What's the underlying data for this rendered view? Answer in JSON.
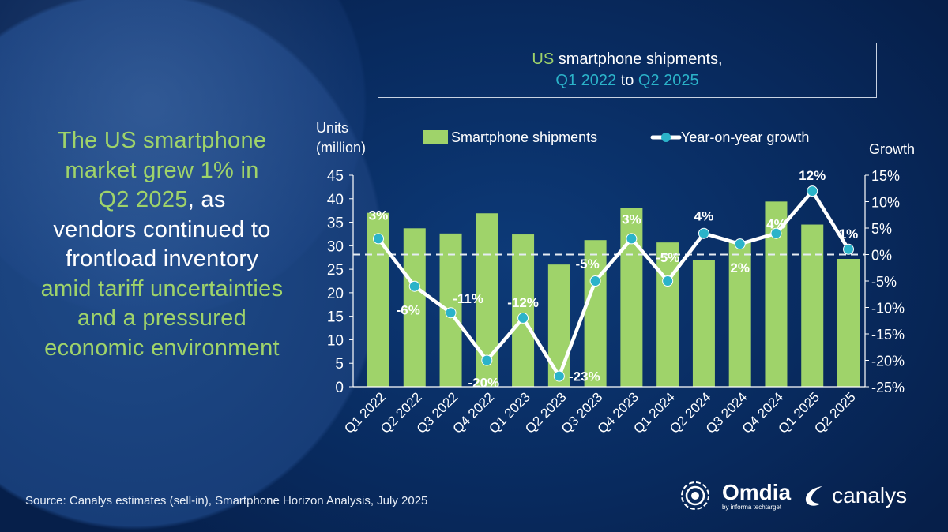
{
  "headline": {
    "l1": "The US smartphone",
    "l2": "market grew 1% in",
    "l3a": "Q2 2025",
    "l3b": ", as",
    "l4": "vendors continued to",
    "l5": "frontload inventory",
    "l6": "amid tariff uncertainties",
    "l7": "and a pressured",
    "l8": "economic environment"
  },
  "title": {
    "p1": "US",
    "p2": " smartphone shipments,",
    "p3": "Q1 2022",
    "p4": " to ",
    "p5": "Q2 2025"
  },
  "source": "Source: Canalys estimates (sell-in), Smartphone Horizon Analysis, July 2025",
  "logos": {
    "omdia": "Omdia",
    "omdia_sub": "by informa techtarget",
    "canalys": "canalys"
  },
  "colors": {
    "bar": "#9fd36a",
    "line": "#ffffff",
    "marker": "#2bb3c9",
    "accent_green": "#9fd36a",
    "accent_teal": "#2bb3c9"
  },
  "chart_data": {
    "type": "bar+line",
    "ylabel_left": [
      "Units",
      "(million)"
    ],
    "ylabel_right": "Growth",
    "categories": [
      "Q1 2022",
      "Q2 2022",
      "Q3 2022",
      "Q4 2022",
      "Q1 2023",
      "Q2 2023",
      "Q3 2023",
      "Q4 2023",
      "Q1 2024",
      "Q2 2024",
      "Q3 2024",
      "Q4 2024",
      "Q1 2025",
      "Q2 2025"
    ],
    "series": [
      {
        "name": "Smartphone shipments",
        "type": "bar",
        "axis": "left",
        "values": [
          37.0,
          33.7,
          32.6,
          36.9,
          32.4,
          26.0,
          31.2,
          38.0,
          30.7,
          27.0,
          31.0,
          39.4,
          34.5,
          27.2
        ]
      },
      {
        "name": "Year-on-year growth",
        "type": "line",
        "axis": "right",
        "values": [
          3,
          -6,
          -11,
          -20,
          -12,
          -23,
          -5,
          3,
          -5,
          4,
          2,
          4,
          12,
          1
        ],
        "labels": [
          "3%",
          "-6%",
          "-11%",
          "-20%",
          "-12%",
          "-23%",
          "-5%",
          "3%",
          "-5%",
          "4%",
          "2%",
          "4%",
          "12%",
          "1%"
        ]
      }
    ],
    "ylim_left": [
      0,
      45
    ],
    "yticks_left": [
      "0",
      "5",
      "10",
      "15",
      "20",
      "25",
      "30",
      "35",
      "40",
      "45"
    ],
    "ylim_right": [
      -25,
      15
    ],
    "yticks_right": [
      "-25%",
      "-20%",
      "-15%",
      "-10%",
      "-5%",
      "0%",
      "5%",
      "10%",
      "15%"
    ],
    "reference_line": "0% growth (dashed)",
    "grid": false,
    "legend": "top"
  }
}
